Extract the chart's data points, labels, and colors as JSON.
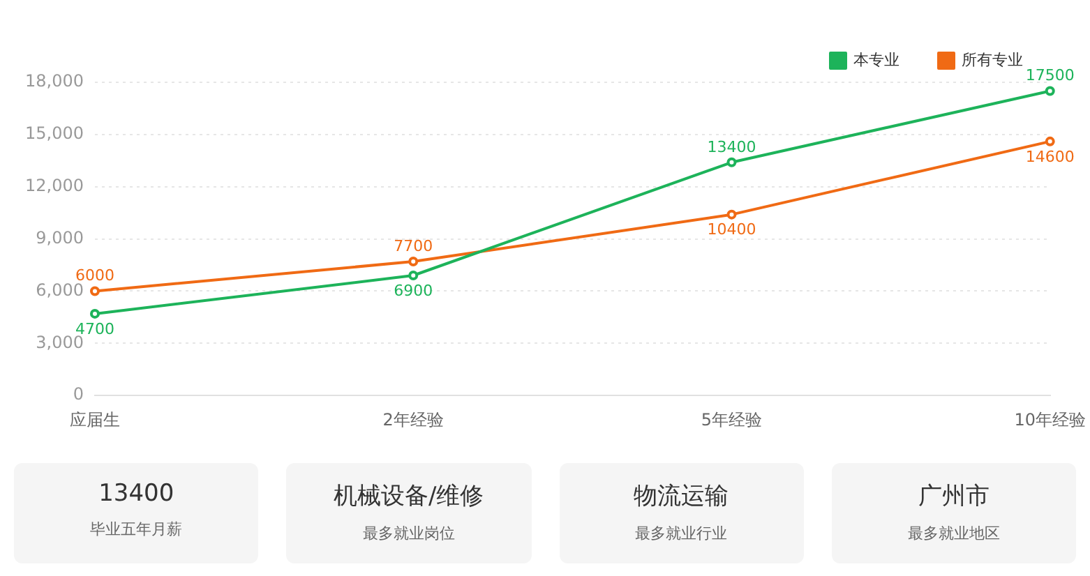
{
  "chart_data": [
    {
      "type": "line",
      "categories": [
        "应届生",
        "2年经验",
        "5年经验",
        "10年经验"
      ],
      "series": [
        {
          "name": "本专业",
          "color": "#1db35a",
          "values": [
            4700,
            6900,
            13400,
            17500
          ]
        },
        {
          "name": "所有专业",
          "color": "#f06a14",
          "values": [
            6000,
            7700,
            10400,
            14600
          ]
        }
      ],
      "ylim": [
        0,
        18000
      ],
      "yticks": [
        0,
        {
          "value": 3000,
          "label": "3,000"
        },
        {
          "value": 6000,
          "label": "6,000"
        },
        {
          "value": 9000,
          "label": "9,000"
        },
        {
          "value": 12000,
          "label": "12,000"
        },
        {
          "value": 15000,
          "label": "15,000"
        },
        {
          "value": 18000,
          "label": "18,000"
        }
      ],
      "grid": "y",
      "legend": "top right",
      "marker": "circle",
      "line_style": "solid",
      "data_labels": true
    },
    {
      "type": "other",
      "annotations": [
        "13400",
        "毕业五年月薪",
        "机械设备/维修",
        "最多就业岗位",
        "物流运输",
        "最多就业行业",
        "广州市",
        "最多就业地区"
      ]
    }
  ]
}
